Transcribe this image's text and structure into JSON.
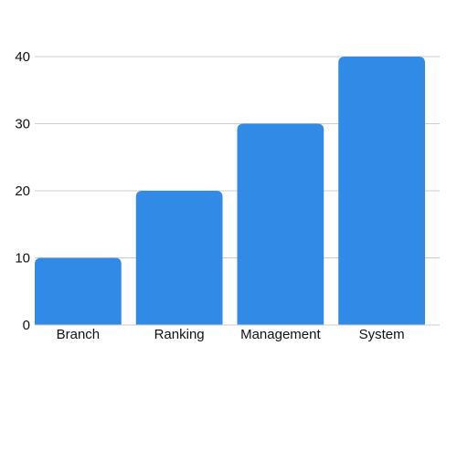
{
  "chart_data": {
    "type": "bar",
    "categories": [
      "Branch",
      "Ranking",
      "Management",
      "System"
    ],
    "values": [
      10,
      20,
      30,
      40
    ],
    "y_ticks": [
      0,
      10,
      20,
      30,
      40
    ],
    "ylim": [
      0,
      40
    ],
    "grid": true,
    "legend": "none",
    "colors": {
      "bar": "#318ae5",
      "grid": "#cccccc",
      "axis": "#333333"
    }
  }
}
